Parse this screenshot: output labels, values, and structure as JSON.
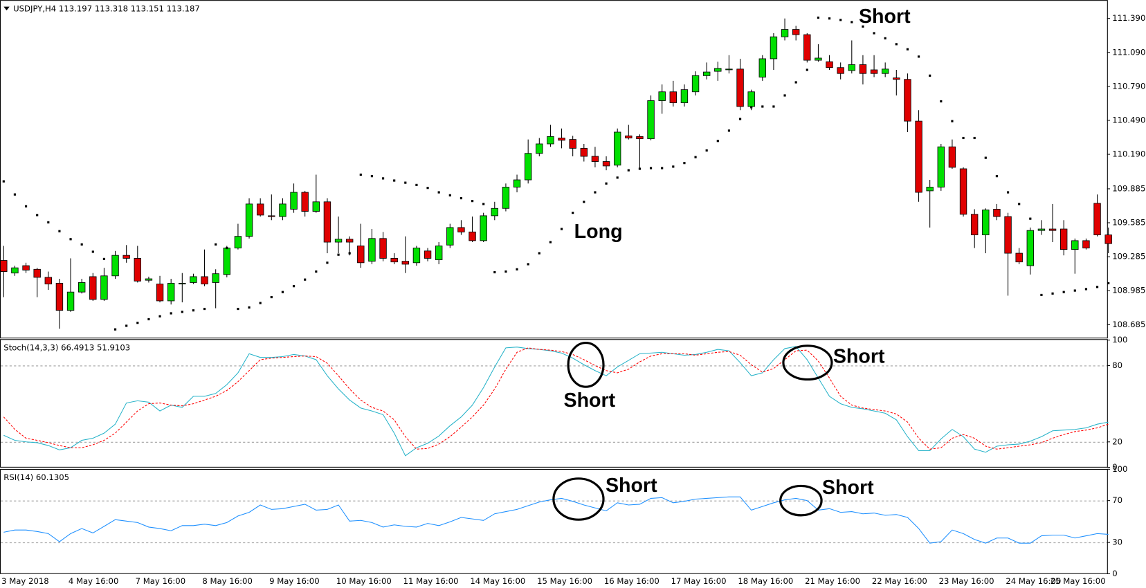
{
  "chart_data": [
    {
      "type": "candlestick",
      "title": "USDJPY,H4 113.197 113.318 113.151 113.187",
      "categories": [
        "3 May 2018",
        null,
        null,
        null,
        null,
        null,
        "4 May 16:00",
        null,
        null,
        null,
        null,
        null,
        "7 May 16:00",
        null,
        null,
        null,
        null,
        null,
        "8 May 16:00",
        null,
        null,
        null,
        null,
        null,
        "9 May 16:00",
        null,
        null,
        null,
        null,
        null,
        "10 May 16:00",
        null,
        null,
        null,
        null,
        null,
        "11 May 16:00",
        null,
        null,
        null,
        null,
        null,
        "14 May 16:00",
        null,
        null,
        null,
        null,
        null,
        "15 May 16:00",
        null,
        null,
        null,
        null,
        null,
        "16 May 16:00",
        null,
        null,
        null,
        null,
        null,
        "17 May 16:00",
        null,
        null,
        null,
        null,
        null,
        "18 May 16:00",
        null,
        null,
        null,
        null,
        null,
        "21 May 16:00",
        null,
        null,
        null,
        null,
        null,
        "22 May 16:00",
        null,
        null,
        null,
        null,
        null,
        "23 May 16:00",
        null,
        null,
        null,
        null,
        null,
        "24 May 16:00",
        null,
        null,
        null,
        null,
        null,
        "25 May 16:00",
        null,
        null,
        null
      ],
      "open": [
        109.252,
        109.141,
        109.206,
        109.174,
        109.103,
        109.051,
        108.811,
        108.973,
        109.109,
        108.908,
        109.116,
        109.297,
        109.271,
        109.077,
        109.044,
        108.895,
        109.044,
        109.057,
        109.109,
        109.057,
        109.128,
        109.362,
        109.465,
        109.751,
        109.647,
        109.64,
        109.705,
        109.854,
        109.686,
        109.77,
        109.414,
        109.44,
        109.381,
        109.245,
        109.446,
        109.271,
        109.245,
        109.232,
        109.336,
        109.258,
        109.388,
        109.543,
        109.504,
        109.427,
        109.647,
        109.712,
        109.9,
        109.964,
        110.198,
        110.282,
        110.334,
        110.321,
        110.243,
        110.172,
        110.126,
        110.094,
        110.353,
        110.347,
        110.327,
        110.664,
        110.742,
        110.645,
        110.742,
        110.885,
        110.923,
        110.943,
        110.943,
        110.612,
        110.872,
        111.034,
        111.228,
        111.293,
        111.247,
        111.021,
        111.008,
        110.956,
        110.93,
        110.982,
        110.936,
        110.904,
        110.865,
        110.852,
        110.483,
        109.867,
        109.9,
        110.256,
        110.062,
        109.66,
        109.478,
        109.705,
        109.64,
        109.316,
        109.206,
        109.517,
        109.53,
        109.53,
        109.349,
        109.427,
        109.757,
        109.478
      ],
      "high": [
        109.381,
        109.206,
        109.232,
        109.187,
        109.154,
        109.09,
        109.271,
        109.09,
        109.141,
        109.187,
        109.336,
        109.388,
        109.381,
        109.109,
        109.116,
        109.09,
        109.141,
        109.135,
        109.349,
        109.174,
        109.381,
        109.576,
        109.802,
        109.802,
        109.835,
        109.802,
        109.932,
        109.867,
        110.01,
        109.802,
        109.64,
        109.465,
        109.576,
        109.53,
        109.504,
        109.316,
        109.465,
        109.381,
        109.362,
        109.414,
        109.576,
        109.608,
        109.64,
        109.673,
        109.77,
        109.932,
        110.01,
        110.321,
        110.334,
        110.45,
        110.418,
        110.353,
        110.282,
        110.256,
        110.172,
        110.418,
        110.45,
        110.366,
        110.71,
        110.807,
        110.839,
        110.807,
        110.923,
        111.001,
        111.008,
        111.066,
        111.034,
        110.761,
        111.066,
        111.26,
        111.39,
        111.325,
        111.26,
        111.163,
        111.066,
        111.001,
        111.196,
        111.066,
        111.066,
        111.001,
        110.936,
        110.904,
        110.58,
        109.964,
        110.282,
        110.321,
        110.075,
        109.705,
        109.712,
        109.751,
        109.673,
        109.362,
        109.543,
        109.608,
        109.751,
        109.608,
        109.446,
        109.446,
        109.835,
        109.543
      ],
      "low": [
        108.928,
        109.116,
        109.141,
        108.928,
        108.992,
        108.649,
        108.798,
        108.96,
        108.895,
        108.895,
        109.09,
        109.232,
        109.057,
        109.057,
        108.882,
        108.863,
        108.882,
        109.044,
        109.025,
        108.83,
        109.103,
        109.349,
        109.446,
        109.64,
        109.608,
        109.608,
        109.673,
        109.64,
        109.673,
        109.316,
        109.316,
        109.297,
        109.187,
        109.219,
        109.245,
        109.219,
        109.141,
        109.206,
        109.245,
        109.219,
        109.362,
        109.478,
        109.414,
        109.414,
        109.608,
        109.686,
        109.854,
        109.932,
        110.172,
        110.256,
        110.243,
        110.172,
        110.126,
        110.075,
        110.049,
        110.075,
        110.321,
        110.062,
        110.314,
        110.548,
        110.612,
        110.612,
        110.71,
        110.852,
        110.839,
        110.904,
        110.58,
        110.58,
        110.839,
        110.936,
        111.196,
        111.196,
        111.001,
        111.008,
        110.936,
        110.852,
        110.904,
        110.807,
        110.872,
        110.872,
        110.71,
        110.386,
        109.77,
        109.543,
        109.867,
        110.062,
        109.64,
        109.362,
        109.316,
        109.608,
        108.941,
        109.219,
        109.128,
        109.478,
        109.414,
        109.297,
        109.135,
        109.349,
        109.465,
        109.316
      ],
      "close": [
        109.154,
        109.187,
        109.167,
        109.103,
        109.044,
        108.811,
        108.973,
        109.057,
        108.908,
        109.116,
        109.297,
        109.271,
        109.07,
        109.09,
        108.895,
        109.051,
        109.051,
        109.109,
        109.044,
        109.135,
        109.362,
        109.465,
        109.751,
        109.653,
        109.64,
        109.751,
        109.854,
        109.686,
        109.77,
        109.414,
        109.44,
        109.414,
        109.232,
        109.446,
        109.271,
        109.239,
        109.219,
        109.362,
        109.271,
        109.381,
        109.543,
        109.504,
        109.427,
        109.647,
        109.712,
        109.9,
        109.964,
        110.198,
        110.282,
        110.347,
        110.314,
        110.243,
        110.172,
        110.126,
        110.087,
        110.386,
        110.334,
        110.327,
        110.664,
        110.742,
        110.645,
        110.761,
        110.885,
        110.917,
        110.949,
        110.943,
        110.612,
        110.742,
        111.034,
        111.228,
        111.293,
        111.247,
        111.021,
        111.04,
        110.956,
        110.904,
        110.982,
        110.904,
        110.904,
        110.943,
        110.852,
        110.483,
        109.854,
        109.9,
        110.256,
        110.075,
        109.66,
        109.478,
        109.699,
        109.64,
        109.316,
        109.239,
        109.517,
        109.53,
        109.517,
        109.349,
        109.427,
        109.362,
        109.478,
        109.401
      ],
      "sar": [
        109.951,
        109.835,
        109.731,
        109.653,
        109.589,
        109.511,
        109.44,
        109.394,
        109.329,
        109.265,
        108.643,
        108.675,
        108.701,
        108.733,
        108.759,
        108.785,
        108.798,
        108.811,
        108.824,
        109.394,
        109.362,
        108.824,
        108.837,
        108.876,
        108.928,
        108.973,
        109.025,
        109.083,
        109.154,
        109.232,
        109.303,
        109.316,
        110.01,
        109.997,
        109.977,
        109.958,
        109.939,
        109.919,
        109.893,
        109.854,
        109.828,
        109.802,
        109.777,
        109.751,
        109.148,
        109.154,
        109.174,
        109.219,
        109.316,
        109.414,
        109.53,
        109.673,
        109.77,
        109.854,
        109.932,
        109.984,
        110.049,
        110.062,
        110.068,
        110.068,
        110.081,
        110.113,
        110.165,
        110.224,
        110.308,
        110.399,
        110.502,
        110.606,
        110.612,
        110.612,
        110.71,
        110.826,
        110.936,
        111.397,
        111.39,
        111.377,
        111.358,
        111.319,
        111.26,
        111.215,
        111.163,
        111.118,
        111.053,
        110.885,
        110.658,
        110.483,
        110.334,
        110.334,
        110.159,
        109.997,
        109.854,
        109.751,
        109.621,
        108.947,
        108.96,
        108.973,
        108.986,
        108.999,
        109.018,
        109.051
      ],
      "up_color": "#00e000",
      "down_color": "#e00000",
      "sar_color": "#000000",
      "ylim": [
        108.57,
        111.52
      ],
      "yticks": [
        108.685,
        108.985,
        109.285,
        109.585,
        109.885,
        {
          "value": 110.19,
          "label": "110.190"
        },
        {
          "value": 110.49,
          "label": "110.490"
        },
        {
          "value": 110.79,
          "label": "110.790"
        },
        {
          "value": 111.09,
          "label": "111.090"
        },
        {
          "value": 111.39,
          "label": "111.390"
        }
      ],
      "annotations": [
        "Short",
        "Long"
      ]
    },
    {
      "type": "line",
      "title": "Stoch(14,3,3) 66.4913 51.9103",
      "series": [
        {
          "color": "#27b3c9",
          "dashed": false,
          "values": [
            25.2,
            21.2,
            20.0,
            19.4,
            17.1,
            13.7,
            15.4,
            21.2,
            22.9,
            26.9,
            33.9,
            50.6,
            52.3,
            51.2,
            44.3,
            48.9,
            47.1,
            55.8,
            55.8,
            58.1,
            65.0,
            74.3,
            89.3,
            86.4,
            86.4,
            87.0,
            88.7,
            87.5,
            84.6,
            72.0,
            61.6,
            52.9,
            46.6,
            44.3,
            41.4,
            26.9,
            9.1,
            15.4,
            18.9,
            24.6,
            32.7,
            39.6,
            48.9,
            62.7,
            78.9,
            93.9,
            94.5,
            93.3,
            92.7,
            91.6,
            89.8,
            85.8,
            80.6,
            76.0,
            72.0,
            78.9,
            84.1,
            89.3,
            89.8,
            90.4,
            89.3,
            88.1,
            88.7,
            90.4,
            92.7,
            91.6,
            82.3,
            72.0,
            74.3,
            84.6,
            93.3,
            95.0,
            84.6,
            70.2,
            55.8,
            50.0,
            47.1,
            46.0,
            44.3,
            42.5,
            37.3,
            24.1,
            13.1,
            13.1,
            22.3,
            29.8,
            24.1,
            14.3,
            11.9,
            16.6,
            17.7,
            18.3,
            20.6,
            24.1,
            28.7,
            29.3,
            29.8,
            31.0,
            33.9,
            35.6
          ]
        },
        {
          "color": "#ff0000",
          "dashed": true,
          "values": [
            39.6,
            29.8,
            22.9,
            21.2,
            19.4,
            17.1,
            15.4,
            15.4,
            17.7,
            21.2,
            26.9,
            35.6,
            44.3,
            50.0,
            50.6,
            48.9,
            48.3,
            50.0,
            52.9,
            55.8,
            60.4,
            67.3,
            76.0,
            84.6,
            85.8,
            86.4,
            87.0,
            87.5,
            87.0,
            81.8,
            72.0,
            61.6,
            52.9,
            47.1,
            44.3,
            37.3,
            24.1,
            14.3,
            14.8,
            18.3,
            24.1,
            31.6,
            39.6,
            48.9,
            61.6,
            77.1,
            90.4,
            93.9,
            92.7,
            92.1,
            91.0,
            88.7,
            84.6,
            80.0,
            76.0,
            74.3,
            77.1,
            82.9,
            87.5,
            89.3,
            89.3,
            89.3,
            88.1,
            89.3,
            90.4,
            91.0,
            88.1,
            80.6,
            74.8,
            77.7,
            84.6,
            91.6,
            92.1,
            83.5,
            70.2,
            55.8,
            48.9,
            46.6,
            45.4,
            44.3,
            41.9,
            35.6,
            22.9,
            14.3,
            15.4,
            22.9,
            25.8,
            22.9,
            16.6,
            14.3,
            15.4,
            16.6,
            17.7,
            19.4,
            22.9,
            25.8,
            28.1,
            29.3,
            31.0,
            33.9
          ]
        }
      ],
      "ylim": [
        0,
        100
      ],
      "yticks": [
        0,
        20,
        80,
        100
      ],
      "levels": [
        20,
        80
      ],
      "annotations": [
        "Short",
        "Short"
      ]
    },
    {
      "type": "line",
      "title": "RSI(14) 60.1305",
      "series": [
        {
          "color": "#1e90ff",
          "dashed": false,
          "values": [
            39.8,
            41.9,
            41.9,
            40.5,
            38.4,
            30.7,
            38.4,
            43.3,
            39.1,
            45.4,
            51.8,
            50.4,
            49.0,
            44.7,
            43.3,
            41.2,
            46.1,
            46.1,
            47.5,
            46.1,
            49.0,
            55.3,
            58.8,
            65.8,
            61.6,
            62.3,
            64.4,
            66.5,
            60.9,
            61.6,
            65.8,
            50.4,
            51.1,
            49.0,
            44.7,
            46.8,
            45.4,
            44.7,
            48.2,
            46.1,
            49.7,
            53.9,
            52.5,
            51.1,
            57.4,
            59.5,
            61.6,
            65.1,
            68.6,
            70.7,
            72.1,
            69.3,
            65.8,
            63.0,
            60.2,
            67.9,
            65.8,
            66.5,
            72.1,
            72.8,
            67.9,
            69.3,
            71.4,
            72.1,
            72.8,
            73.5,
            73.5,
            60.9,
            64.4,
            67.9,
            70.7,
            72.1,
            70.0,
            60.9,
            62.3,
            58.8,
            59.5,
            57.4,
            58.1,
            56.0,
            56.7,
            53.9,
            43.3,
            29.3,
            30.7,
            41.9,
            38.4,
            32.8,
            29.3,
            34.2,
            34.2,
            29.3,
            29.3,
            36.3,
            37.0,
            37.0,
            34.2,
            36.3,
            38.4,
            37.7
          ]
        }
      ],
      "ylim": [
        0,
        100
      ],
      "yticks": [
        0,
        30,
        70,
        100
      ],
      "levels": [
        30,
        70
      ],
      "annotations": [
        "Short",
        "Short"
      ]
    }
  ]
}
